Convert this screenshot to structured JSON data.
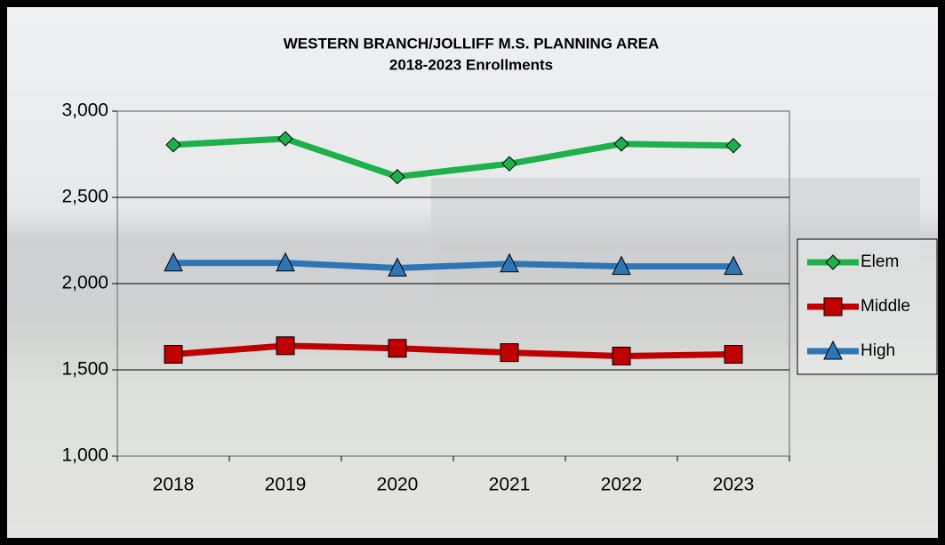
{
  "chart_data": {
    "type": "line",
    "title": "WESTERN BRANCH/JOLLIFF M.S. PLANNING AREA",
    "subtitle": "2018-2023 Enrollments",
    "categories": [
      "2018",
      "2019",
      "2020",
      "2021",
      "2022",
      "2023"
    ],
    "series": [
      {
        "name": "Elem",
        "color": "#1eb04b",
        "marker": "diamond",
        "values": [
          2805,
          2840,
          2620,
          2695,
          2810,
          2800
        ]
      },
      {
        "name": "Middle",
        "color": "#c00000",
        "marker": "square",
        "values": [
          1590,
          1640,
          1625,
          1600,
          1580,
          1590
        ]
      },
      {
        "name": "High",
        "color": "#2e75b6",
        "marker": "triangle",
        "values": [
          2120,
          2120,
          2090,
          2115,
          2100,
          2100
        ]
      }
    ],
    "ylim": [
      1000,
      3000
    ],
    "yticks": [
      {
        "value": 1000,
        "label": "1,000"
      },
      {
        "value": 1500,
        "label": "1,500"
      },
      {
        "value": 2000,
        "label": "2,000"
      },
      {
        "value": 2500,
        "label": "2,500"
      },
      {
        "value": 3000,
        "label": "3,000"
      }
    ],
    "grid": true,
    "legend": "right"
  }
}
